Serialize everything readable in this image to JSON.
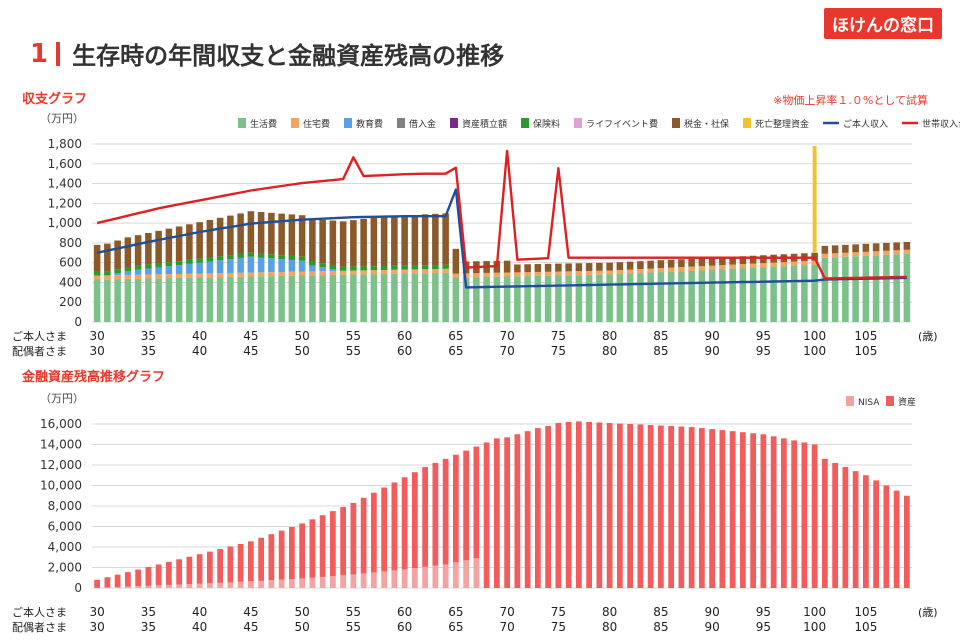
{
  "brand": "ほけんの窓口",
  "title": {
    "number": "1",
    "text": "生存時の年間収支と金融資産残高の推移"
  },
  "chart1_label": "収支グラフ",
  "chart2_label": "金融資産残高推移グラフ",
  "unit": "（万円）",
  "note": "※物価上昇率１.０%として試算",
  "age_unit": "(歳)",
  "row_labels": {
    "self": "ご本人さま",
    "spouse": "配偶者さま"
  },
  "chart_data": [
    {
      "type": "bar",
      "title": "収支グラフ",
      "ylabel": "（万円）",
      "xlabel": "(歳)",
      "ylim": [
        0,
        1800
      ],
      "yticks": [
        "0",
        "200",
        "400",
        "600",
        "800",
        "1,000",
        "1,200",
        "1,400",
        "1,600",
        "1,800"
      ],
      "x_self": [
        30,
        31,
        32,
        33,
        34,
        35,
        36,
        37,
        38,
        39,
        40,
        41,
        42,
        43,
        44,
        45,
        46,
        47,
        48,
        49,
        50,
        51,
        52,
        53,
        54,
        55,
        56,
        57,
        58,
        59,
        60,
        61,
        62,
        63,
        64,
        65,
        66,
        67,
        68,
        69,
        70,
        71,
        72,
        73,
        74,
        75,
        76,
        77,
        78,
        79,
        80,
        81,
        82,
        83,
        84,
        85,
        86,
        87,
        88,
        89,
        90,
        91,
        92,
        93,
        94,
        95,
        96,
        97,
        98,
        99,
        100,
        101,
        102,
        103,
        104,
        105,
        106,
        107,
        108,
        109
      ],
      "x_tick_labels_self": [
        "30",
        "35",
        "40",
        "45",
        "50",
        "55",
        "60",
        "65",
        "70",
        "75",
        "80",
        "85",
        "90",
        "95",
        "100",
        "105"
      ],
      "x_tick_labels_spouse": [
        "30",
        "35",
        "40",
        "45",
        "50",
        "55",
        "60",
        "65",
        "70",
        "75",
        "80",
        "85",
        "90",
        "95",
        "100",
        "105"
      ],
      "legend": [
        {
          "name": "生活費",
          "color": "#7cc08a",
          "kind": "bar"
        },
        {
          "name": "住宅費",
          "color": "#f4a460",
          "kind": "bar"
        },
        {
          "name": "教育費",
          "color": "#5aa0e6",
          "kind": "bar"
        },
        {
          "name": "借入金",
          "color": "#808080",
          "kind": "bar"
        },
        {
          "name": "資産積立額",
          "color": "#7b2a8c",
          "kind": "bar"
        },
        {
          "name": "保険料",
          "color": "#2a9a2a",
          "kind": "bar"
        },
        {
          "name": "ライフイベント費",
          "color": "#e3a0d8",
          "kind": "bar"
        },
        {
          "name": "税金・社保",
          "color": "#8b5a2b",
          "kind": "bar"
        },
        {
          "name": "死亡整理資金",
          "color": "#f2c12e",
          "kind": "bar"
        },
        {
          "name": "ご本人収入",
          "color": "#1f4e9c",
          "kind": "line"
        },
        {
          "name": "世帯収入合計",
          "color": "#e02020",
          "kind": "line"
        }
      ],
      "series": [
        {
          "name": "生活費",
          "values": [
            430,
            432,
            434,
            436,
            438,
            440,
            442,
            444,
            446,
            448,
            450,
            452,
            454,
            456,
            458,
            460,
            462,
            464,
            466,
            468,
            470,
            472,
            474,
            476,
            478,
            480,
            482,
            484,
            486,
            488,
            490,
            492,
            494,
            496,
            498,
            450,
            452,
            454,
            456,
            458,
            460,
            462,
            464,
            466,
            468,
            470,
            472,
            474,
            476,
            478,
            480,
            485,
            490,
            495,
            500,
            505,
            510,
            515,
            520,
            525,
            530,
            535,
            540,
            545,
            550,
            555,
            560,
            565,
            570,
            575,
            580,
            650,
            655,
            660,
            665,
            670,
            675,
            680,
            685,
            690
          ]
        },
        {
          "name": "住宅費",
          "values": [
            40,
            40,
            40,
            40,
            40,
            40,
            40,
            40,
            40,
            40,
            40,
            40,
            40,
            40,
            40,
            40,
            40,
            40,
            40,
            40,
            40,
            40,
            40,
            40,
            40,
            40,
            40,
            40,
            40,
            40,
            40,
            40,
            40,
            40,
            40,
            40,
            40,
            40,
            40,
            40,
            40,
            40,
            40,
            40,
            40,
            40,
            40,
            40,
            40,
            40,
            40,
            40,
            40,
            40,
            40,
            40,
            40,
            40,
            40,
            40,
            40,
            40,
            40,
            40,
            40,
            40,
            40,
            40,
            40,
            40,
            40,
            40,
            40,
            40,
            40,
            40,
            40,
            40,
            40,
            40
          ]
        },
        {
          "name": "教育費",
          "values": [
            0,
            0,
            20,
            40,
            50,
            60,
            70,
            80,
            90,
            100,
            110,
            120,
            130,
            140,
            150,
            160,
            150,
            140,
            130,
            120,
            110,
            60,
            40,
            20,
            0,
            0,
            0,
            0,
            0,
            0,
            0,
            0,
            0,
            0,
            0,
            0,
            0,
            0,
            0,
            0,
            0,
            0,
            0,
            0,
            0,
            0,
            0,
            0,
            0,
            0,
            0,
            0,
            0,
            0,
            0,
            0,
            0,
            0,
            0,
            0,
            0,
            0,
            0,
            0,
            0,
            0,
            0,
            0,
            0,
            0,
            0,
            0,
            0,
            0,
            0,
            0,
            0,
            0,
            0,
            0
          ]
        },
        {
          "name": "保険料",
          "values": [
            40,
            40,
            40,
            40,
            40,
            40,
            40,
            40,
            40,
            40,
            40,
            40,
            40,
            40,
            40,
            40,
            40,
            40,
            40,
            40,
            40,
            40,
            40,
            40,
            40,
            40,
            40,
            40,
            40,
            40,
            40,
            40,
            40,
            40,
            40,
            0,
            0,
            0,
            0,
            0,
            0,
            0,
            0,
            0,
            0,
            0,
            0,
            0,
            0,
            0,
            0,
            0,
            0,
            0,
            0,
            0,
            0,
            0,
            0,
            0,
            0,
            0,
            0,
            0,
            0,
            0,
            0,
            0,
            0,
            0,
            0,
            0,
            0,
            0,
            0,
            0,
            0,
            0,
            0,
            0
          ]
        },
        {
          "name": "税金・社保",
          "values": [
            270,
            280,
            290,
            300,
            310,
            320,
            330,
            340,
            350,
            360,
            370,
            380,
            390,
            400,
            410,
            420,
            420,
            420,
            420,
            420,
            420,
            430,
            440,
            450,
            460,
            470,
            480,
            490,
            495,
            500,
            505,
            510,
            515,
            518,
            520,
            250,
            120,
            120,
            120,
            120,
            120,
            80,
            80,
            80,
            80,
            80,
            80,
            80,
            80,
            80,
            80,
            80,
            80,
            80,
            80,
            80,
            80,
            80,
            80,
            80,
            80,
            80,
            80,
            80,
            80,
            80,
            80,
            80,
            80,
            80,
            80,
            80,
            80,
            80,
            80,
            80,
            80,
            80,
            80,
            80
          ]
        },
        {
          "name": "死亡整理資金",
          "values": [
            0,
            0,
            0,
            0,
            0,
            0,
            0,
            0,
            0,
            0,
            0,
            0,
            0,
            0,
            0,
            0,
            0,
            0,
            0,
            0,
            0,
            0,
            0,
            0,
            0,
            0,
            0,
            0,
            0,
            0,
            0,
            0,
            0,
            0,
            0,
            0,
            0,
            0,
            0,
            0,
            0,
            0,
            0,
            0,
            0,
            0,
            0,
            0,
            0,
            0,
            0,
            0,
            0,
            0,
            0,
            0,
            0,
            0,
            0,
            0,
            0,
            0,
            0,
            0,
            0,
            0,
            0,
            0,
            0,
            0,
            1080,
            0,
            0,
            0,
            0,
            0,
            0,
            0,
            0,
            0
          ]
        },
        {
          "name": "ご本人収入",
          "values": [
            700,
            722,
            744,
            766,
            788,
            810,
            830,
            850,
            870,
            890,
            910,
            927,
            944,
            961,
            978,
            995,
            1003,
            1011,
            1019,
            1027,
            1035,
            1040,
            1045,
            1050,
            1055,
            1060,
            1062,
            1064,
            1066,
            1068,
            1070,
            1070,
            1070,
            1070,
            1070,
            1340,
            350,
            352,
            354,
            356,
            358,
            360,
            362,
            364,
            366,
            368,
            370,
            372,
            374,
            376,
            378,
            380,
            382,
            384,
            386,
            388,
            390,
            392,
            394,
            396,
            398,
            400,
            402,
            404,
            406,
            408,
            410,
            412,
            414,
            416,
            418,
            430,
            432,
            434,
            436,
            438,
            440,
            442,
            444,
            446
          ]
        },
        {
          "name": "世帯収入合計",
          "values": [
            1000,
            1025,
            1050,
            1075,
            1100,
            1125,
            1150,
            1170,
            1190,
            1210,
            1230,
            1250,
            1270,
            1290,
            1310,
            1330,
            1345,
            1360,
            1375,
            1390,
            1405,
            1415,
            1425,
            1435,
            1445,
            1665,
            1475,
            1480,
            1485,
            1490,
            1495,
            1498,
            1500,
            1500,
            1500,
            1560,
            550,
            555,
            560,
            565,
            1730,
            630,
            635,
            640,
            645,
            1555,
            650,
            650,
            650,
            650,
            650,
            650,
            650,
            650,
            650,
            650,
            650,
            650,
            650,
            650,
            650,
            650,
            650,
            650,
            650,
            650,
            650,
            650,
            650,
            650,
            650,
            440,
            442,
            444,
            446,
            448,
            450,
            452,
            454,
            456
          ]
        }
      ]
    },
    {
      "type": "bar",
      "title": "金融資産残高推移グラフ",
      "ylabel": "（万円）",
      "xlabel": "(歳)",
      "ylim": [
        0,
        16000
      ],
      "yticks": [
        "0",
        "2,000",
        "4,000",
        "6,000",
        "8,000",
        "10,000",
        "12,000",
        "14,000",
        "16,000"
      ],
      "x_tick_labels_self": [
        "30",
        "35",
        "40",
        "45",
        "50",
        "55",
        "60",
        "65",
        "70",
        "75",
        "80",
        "85",
        "90",
        "95",
        "100",
        "105"
      ],
      "x_tick_labels_spouse": [
        "30",
        "35",
        "40",
        "45",
        "50",
        "55",
        "60",
        "65",
        "70",
        "75",
        "80",
        "85",
        "90",
        "95",
        "100",
        "105"
      ],
      "legend": [
        {
          "name": "NISA",
          "color": "#f4a3a3"
        },
        {
          "name": "資産",
          "color": "#f25c5c"
        }
      ],
      "series": [
        {
          "name": "資産",
          "values": [
            800,
            1050,
            1300,
            1550,
            1800,
            2050,
            2300,
            2550,
            2800,
            3050,
            3300,
            3550,
            3800,
            4050,
            4300,
            4550,
            4900,
            5250,
            5600,
            5950,
            6300,
            6700,
            7100,
            7500,
            7900,
            8300,
            8800,
            9300,
            9800,
            10300,
            10800,
            11300,
            11800,
            12200,
            12600,
            13000,
            13400,
            13800,
            14200,
            14600,
            14700,
            15000,
            15300,
            15600,
            15800,
            16100,
            16200,
            16250,
            16200,
            16150,
            16100,
            16050,
            16000,
            15950,
            15900,
            15850,
            15800,
            15750,
            15700,
            15600,
            15500,
            15400,
            15300,
            15200,
            15100,
            15000,
            14800,
            14600,
            14400,
            14200,
            14000,
            12600,
            12200,
            11800,
            11400,
            11000,
            10500,
            10000,
            9500,
            9000
          ]
        },
        {
          "name": "NISA",
          "values": [
            20,
            60,
            100,
            140,
            180,
            220,
            260,
            300,
            340,
            380,
            420,
            460,
            500,
            550,
            600,
            650,
            700,
            760,
            820,
            880,
            940,
            1000,
            1080,
            1160,
            1240,
            1320,
            1420,
            1520,
            1620,
            1720,
            1820,
            1940,
            2060,
            2180,
            2300,
            2500,
            2700,
            2900,
            0,
            0,
            0,
            0,
            0,
            0,
            0,
            0,
            0,
            0,
            0,
            0,
            0,
            0,
            0,
            0,
            0,
            0,
            0,
            0,
            0,
            0,
            0,
            0,
            0,
            0,
            0,
            0,
            0,
            0,
            0,
            0,
            0,
            0,
            0,
            0,
            0,
            0,
            0,
            0,
            0,
            0
          ]
        }
      ]
    }
  ]
}
